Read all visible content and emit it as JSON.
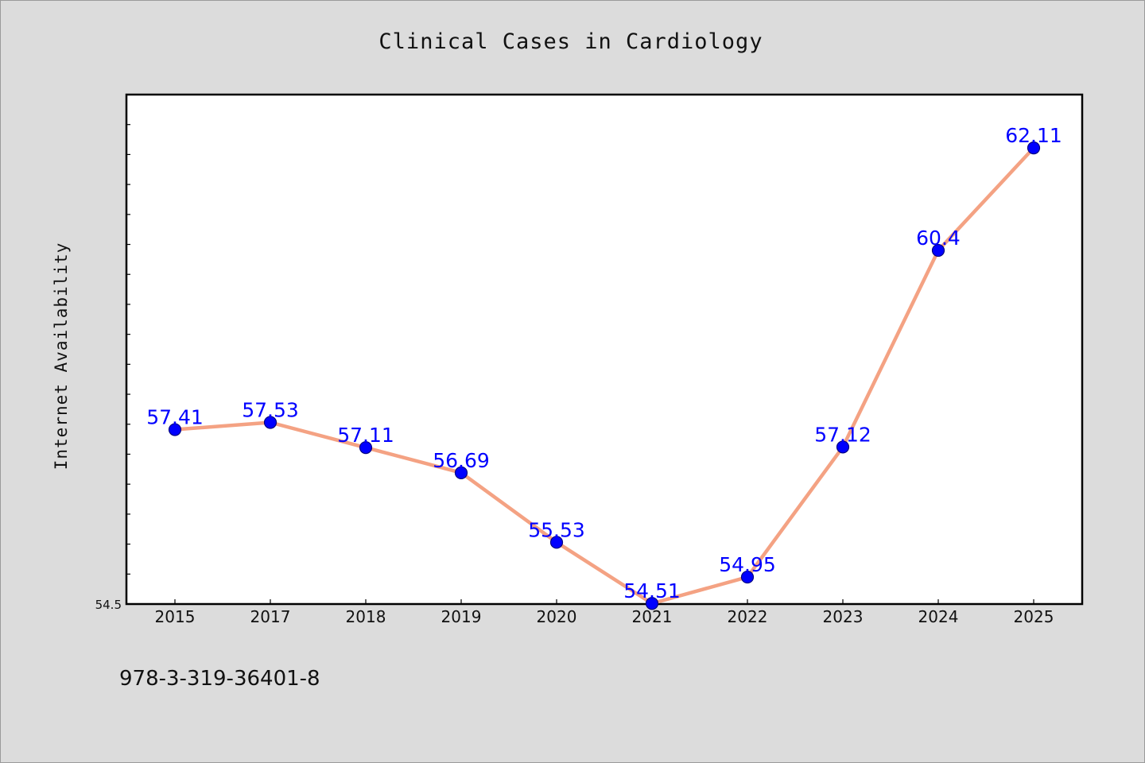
{
  "chart_data": {
    "type": "line",
    "title": "Clinical Cases in Cardiology",
    "xlabel": "",
    "ylabel": "Internet Availability",
    "categories": [
      "2015",
      "2017",
      "2018",
      "2019",
      "2020",
      "2021",
      "2022",
      "2023",
      "2024",
      "2025"
    ],
    "series": [
      {
        "values": [
          57.41,
          57.53,
          57.11,
          56.69,
          55.53,
          54.51,
          54.95,
          57.12,
          60.4,
          62.11
        ],
        "data_labels": [
          "57.41",
          "57.53",
          "57.11",
          "56.69",
          "55.53",
          "54.51",
          "54.95",
          "57.12",
          "60.4",
          "62.11"
        ]
      }
    ],
    "y_tick_labels": [
      "54.5"
    ],
    "ylim": [
      54.5,
      63.0
    ],
    "grid": false,
    "legend": "none",
    "colors": {
      "line": "#f4a283",
      "marker_fill": "#0000ff",
      "marker_edge": "#000080",
      "data_label": "#0000ff",
      "background": "#dcdcdc",
      "plot_area": "#ffffff"
    }
  },
  "footer_text": "978-3-319-36401-8"
}
